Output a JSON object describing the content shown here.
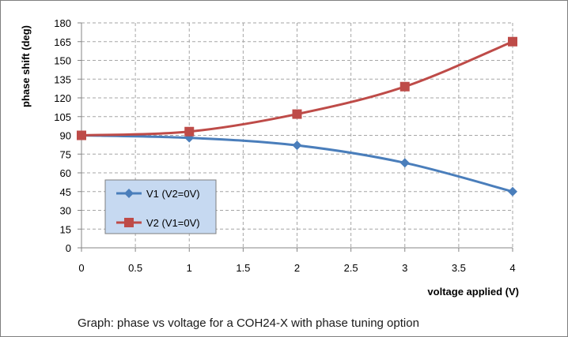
{
  "caption": "Graph: phase vs voltage for a COH24-X with phase tuning option",
  "chart_data": {
    "type": "line",
    "title": "",
    "xlabel": "voltage applied (V)",
    "ylabel": "phase shift (deg)",
    "xlim": [
      0,
      4
    ],
    "ylim": [
      0,
      180
    ],
    "x_ticks": [
      0,
      0.5,
      1,
      1.5,
      2,
      2.5,
      3,
      3.5,
      4
    ],
    "y_ticks": [
      0,
      15,
      30,
      45,
      60,
      75,
      90,
      105,
      120,
      135,
      150,
      165,
      180
    ],
    "grid": true,
    "legend_position": "bottom-left",
    "series": [
      {
        "name": "V1 (V2=0V)",
        "color": "#4a7ebb",
        "marker": "diamond",
        "x": [
          0,
          1,
          2,
          3,
          4
        ],
        "y": [
          90,
          88,
          82,
          68,
          45
        ]
      },
      {
        "name": "V2 (V1=0V)",
        "color": "#be4b48",
        "marker": "square",
        "x": [
          0,
          1,
          2,
          3,
          4
        ],
        "y": [
          90,
          93,
          107,
          129,
          165
        ]
      }
    ]
  }
}
